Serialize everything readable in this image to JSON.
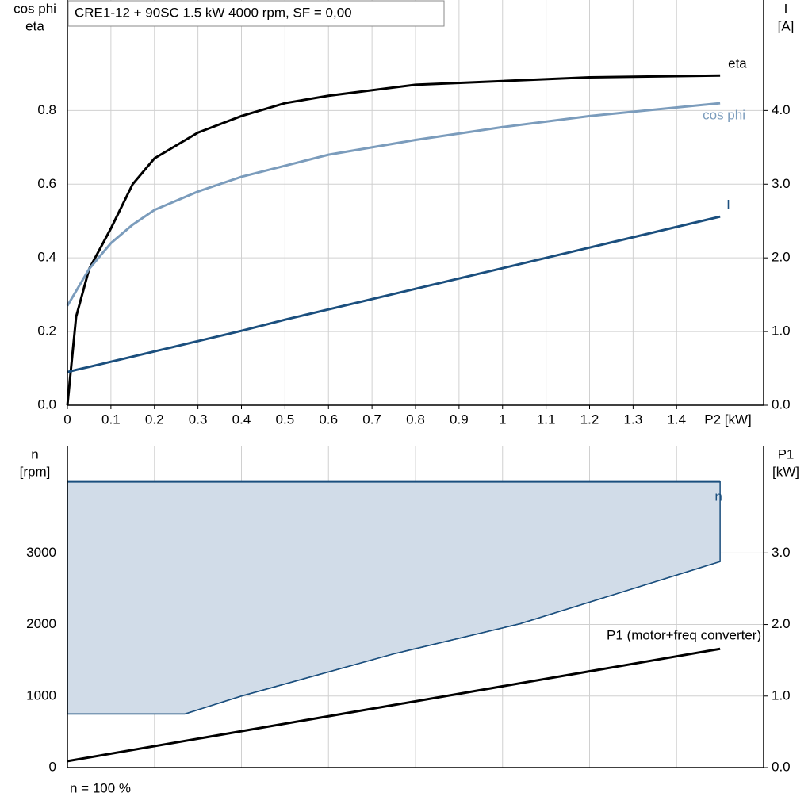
{
  "title": "CRE1-12 + 90SC   1.5 kW   4000 rpm, SF = 0,00",
  "footer": "n = 100 %",
  "chart_data": [
    {
      "type": "line",
      "ylabel": [
        "cos phi",
        "eta"
      ],
      "y2label": [
        "I",
        "[A]"
      ],
      "xlabel": "P2 [kW]",
      "x": [
        0,
        0.02,
        0.05,
        0.1,
        0.15,
        0.2,
        0.3,
        0.4,
        0.5,
        0.6,
        0.8,
        1.0,
        1.2,
        1.5
      ],
      "series": [
        {
          "name": "eta",
          "color": "#000000",
          "values": [
            0,
            0.24,
            0.37,
            0.48,
            0.6,
            0.67,
            0.74,
            0.785,
            0.82,
            0.84,
            0.87,
            0.88,
            0.89,
            0.895
          ]
        },
        {
          "name": "cos phi",
          "color": "#7b9cbc",
          "values": [
            0.27,
            0.31,
            0.37,
            0.44,
            0.49,
            0.53,
            0.58,
            0.62,
            0.65,
            0.68,
            0.72,
            0.755,
            0.785,
            0.82
          ]
        },
        {
          "name": "I",
          "color": "#1b4f7e",
          "axis": "y2",
          "values": [
            0.45,
            0.48,
            0.52,
            0.59,
            0.66,
            0.73,
            0.87,
            1.01,
            1.16,
            1.3,
            1.58,
            1.86,
            2.14,
            2.56
          ]
        }
      ],
      "xlim": [
        0,
        1.6
      ],
      "xticks": [
        0,
        0.1,
        0.2,
        0.3,
        0.4,
        0.5,
        0.6,
        0.7,
        0.8,
        0.9,
        1.0,
        1.1,
        1.2,
        1.3,
        1.4
      ],
      "ylim": [
        0,
        1.1
      ],
      "yticks": [
        {
          "value": 0,
          "label": "0.0"
        },
        {
          "value": 0.2,
          "label": "0.2"
        },
        {
          "value": 0.4,
          "label": "0.4"
        },
        {
          "value": 0.6,
          "label": "0.6"
        },
        {
          "value": 0.8,
          "label": "0.8"
        }
      ],
      "y2lim": [
        0,
        5.5
      ],
      "y2ticks": [
        {
          "value": 0,
          "label": "0.0"
        },
        {
          "value": 1,
          "label": "1.0"
        },
        {
          "value": 2,
          "label": "2.0"
        },
        {
          "value": 3,
          "label": "3.0"
        },
        {
          "value": 4,
          "label": "4.0"
        }
      ],
      "grid": true
    },
    {
      "type": "line",
      "ylabel": [
        "n",
        "[rpm]"
      ],
      "y2label": [
        "P1",
        "[kW]"
      ],
      "series": [
        {
          "name": "n",
          "color": "#1b4f7e",
          "fill": "#d1dce8",
          "x": [
            0,
            0.27,
            0.4,
            0.75,
            1.04,
            1.5
          ],
          "values": [
            4000,
            4000,
            4000,
            4000,
            4000,
            4000
          ],
          "lower": [
            750,
            750,
            1000,
            1590,
            2010,
            2880
          ]
        },
        {
          "name": "P1 (motor+freq converter)",
          "color": "#000000",
          "axis": "y2",
          "x": [
            0,
            1.5
          ],
          "values": [
            0.09,
            1.66
          ]
        }
      ],
      "xlim": [
        0,
        1.6
      ],
      "xticks": [
        0,
        0.2,
        0.4,
        0.6,
        0.8,
        1.0,
        1.2,
        1.4
      ],
      "ylim": [
        0,
        4500
      ],
      "yticks": [
        0,
        1000,
        2000,
        3000
      ],
      "y2lim": [
        0,
        4.5
      ],
      "y2ticks": [
        {
          "value": 0,
          "label": "0.0"
        },
        {
          "value": 1,
          "label": "1.0"
        },
        {
          "value": 2,
          "label": "2.0"
        },
        {
          "value": 3,
          "label": "3.0"
        }
      ],
      "grid": true
    }
  ]
}
